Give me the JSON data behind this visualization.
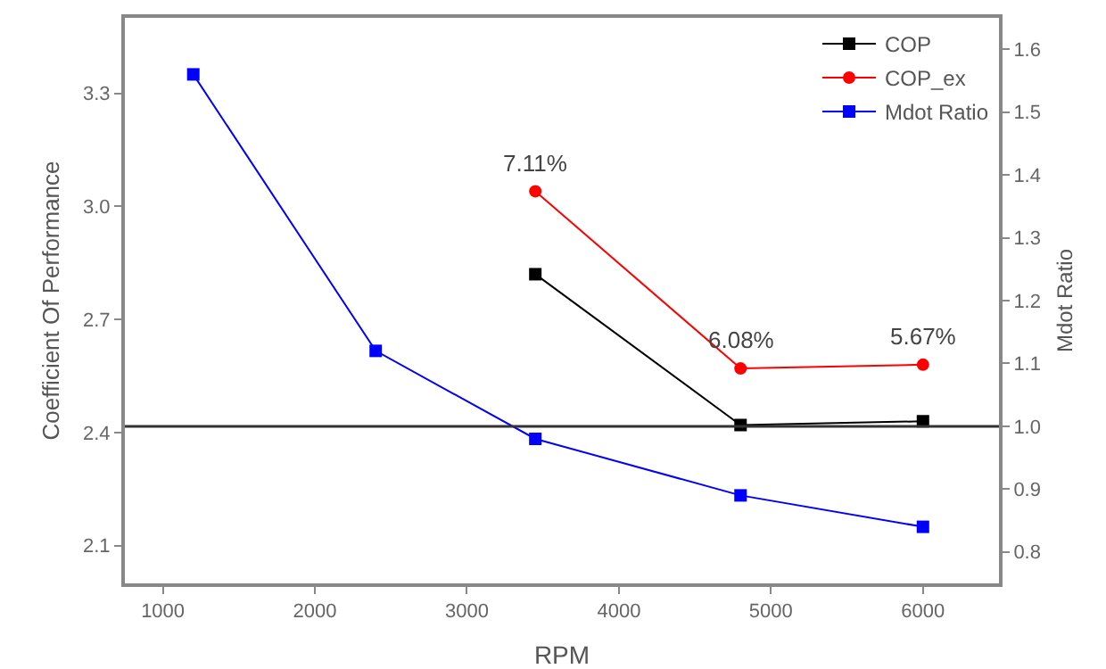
{
  "chart_data": {
    "type": "line",
    "xlabel": "RPM",
    "ylabel": "Coefficient Of Performance",
    "y2label": "Mdot Ratio",
    "xlim": [
      750,
      6500
    ],
    "xticks": [
      1000,
      2000,
      3000,
      4000,
      5000,
      6000
    ],
    "ylim": [
      2.0,
      3.5
    ],
    "yticks": [
      2.1,
      2.4,
      2.7,
      {
        "value": 3,
        "label": "3.0"
      },
      3.3
    ],
    "y2lim": [
      0.75,
      1.65
    ],
    "y2ticks": [
      0.8,
      0.9,
      {
        "value": 1,
        "label": "1.0"
      },
      1.1,
      1.2,
      1.3,
      1.4,
      1.5,
      1.6
    ],
    "grid": false,
    "legend": "top right",
    "line_style": "solid",
    "series": [
      {
        "name": "COP",
        "color": "#000000",
        "marker": "square",
        "x": [
          3450,
          4800,
          6000
        ],
        "values": [
          2.82,
          2.42,
          2.43
        ]
      },
      {
        "name": "COP_ex",
        "color": "#ff0000",
        "marker": "circle",
        "x": [
          3450,
          4800,
          6000
        ],
        "values": [
          3.04,
          2.57,
          2.58
        ]
      },
      {
        "name": "Mdot Ratio",
        "color": "#0000ff",
        "marker": "square",
        "axis": "y2",
        "x": [
          1200,
          2400,
          3450,
          4800,
          6000
        ],
        "values": [
          1.56,
          1.12,
          0.98,
          0.89,
          0.84
        ]
      }
    ],
    "ref_lines": [
      {
        "axis": "y2",
        "value": 1.0,
        "color": "#333333"
      }
    ],
    "annotations": [
      {
        "text": "7.11%",
        "x": 3450,
        "y": 3.04
      },
      {
        "text": "6.08%",
        "x": 4800,
        "y": 2.57
      },
      {
        "text": "5.67%",
        "x": 6000,
        "y": 2.58
      }
    ]
  }
}
